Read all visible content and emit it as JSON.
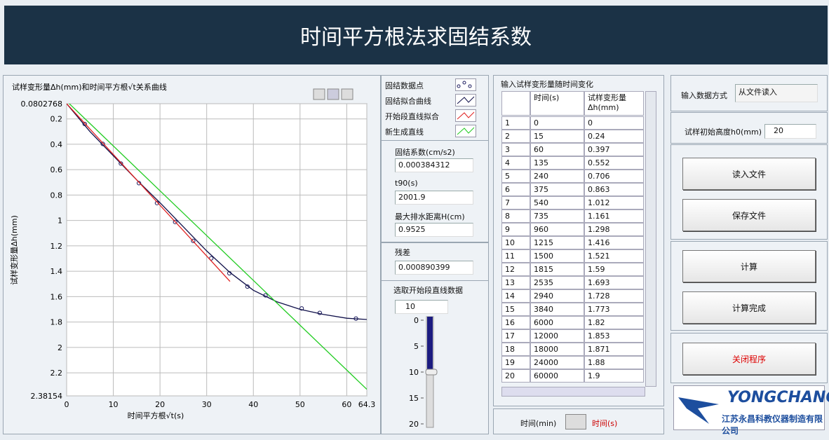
{
  "header": {
    "title": "时间平方根法求固结系数"
  },
  "chart_data": {
    "type": "line",
    "title": "试样变形量Δh(mm)和时间平方根√t关系曲线",
    "x_label": "时间平方根√t(s)",
    "y_label": "试样变形量Δh(mm)",
    "xlim": [
      0,
      64.3
    ],
    "xticks": [
      0,
      10,
      20,
      30,
      40,
      50,
      60,
      64.3
    ],
    "ylim": [
      0.0802768,
      2.38154
    ],
    "yticks": [
      0.0802768,
      0.2,
      0.4,
      0.6,
      0.8,
      1,
      1.2,
      1.4,
      1.6,
      1.8,
      2,
      2.2,
      2.38154
    ],
    "y_inverted": true,
    "grid": true,
    "series": [
      {
        "name": "固结数据点",
        "color": "#1a1a5e",
        "mode": "markers",
        "x": [
          3.87,
          7.75,
          11.62,
          15.49,
          19.36,
          23.24,
          27.11,
          30.98,
          34.86,
          38.73,
          42.6,
          50.35,
          54.22,
          61.97
        ],
        "values": [
          0.24,
          0.397,
          0.552,
          0.706,
          0.863,
          1.012,
          1.161,
          1.298,
          1.416,
          1.521,
          1.59,
          1.693,
          1.728,
          1.773
        ]
      },
      {
        "name": "固结拟合曲线",
        "color": "#10104a",
        "mode": "line",
        "x": [
          0,
          5,
          10,
          15,
          20,
          25,
          30,
          35,
          40,
          45,
          50,
          55,
          60,
          64.3
        ],
        "values": [
          0.08,
          0.3,
          0.49,
          0.68,
          0.86,
          1.05,
          1.24,
          1.41,
          1.55,
          1.64,
          1.7,
          1.74,
          1.77,
          1.78
        ]
      },
      {
        "name": "开始段直线拟合",
        "color": "#e02020",
        "mode": "line",
        "x": [
          0,
          35
        ],
        "values": [
          0.08,
          1.48
        ]
      },
      {
        "name": "新生成直线",
        "color": "#22cc22",
        "mode": "line",
        "x": [
          0,
          64.3
        ],
        "values": [
          0.06,
          2.33
        ]
      }
    ]
  },
  "results": [
    {
      "label": "固结系数(cm/s2)",
      "value": 0.000384312
    },
    {
      "label": "t90(s)",
      "value": 2001.9
    },
    {
      "label": "最大排水距离H(cm)",
      "value": 0.9525
    }
  ],
  "residual": {
    "label": "残差",
    "value": 0.000890399
  },
  "start_fit": {
    "label": "选取开始段直线数据",
    "value": 10,
    "ticks": [
      0,
      5,
      10,
      15,
      20
    ]
  },
  "table": {
    "title": "输入试样变形量随时间变化",
    "columns": [
      "时间(s)",
      "试样变形量Δh(mm)"
    ],
    "rows": [
      [
        1,
        0,
        0
      ],
      [
        2,
        15,
        0.24
      ],
      [
        3,
        60,
        0.397
      ],
      [
        4,
        135,
        0.552
      ],
      [
        5,
        240,
        0.706
      ],
      [
        6,
        375,
        0.863
      ],
      [
        7,
        540,
        1.012
      ],
      [
        8,
        735,
        1.161
      ],
      [
        9,
        960,
        1.298
      ],
      [
        10,
        1215,
        1.416
      ],
      [
        11,
        1500,
        1.521
      ],
      [
        12,
        1815,
        1.59
      ],
      [
        13,
        2535,
        1.693
      ],
      [
        14,
        2940,
        1.728
      ],
      [
        15,
        3840,
        1.773
      ],
      [
        16,
        6000,
        1.82
      ],
      [
        17,
        12000,
        1.853
      ],
      [
        18,
        18000,
        1.871
      ],
      [
        19,
        24000,
        1.88
      ],
      [
        20,
        60000,
        1.9
      ]
    ]
  },
  "switch": {
    "left": "时间(min)",
    "right": "时间(s)"
  },
  "settings": {
    "input_method_label": "输入数据方式",
    "input_method": "从文件读入",
    "h0_label": "试样初始高度h0(mm)",
    "h0": 20
  },
  "buttons": [
    "读入文件",
    "保存文件",
    "计算",
    "计算完成",
    "关闭程序"
  ],
  "logo": {
    "brand": "YONGCHANG",
    "company": "江苏永昌科教仪器制造有限公司"
  }
}
